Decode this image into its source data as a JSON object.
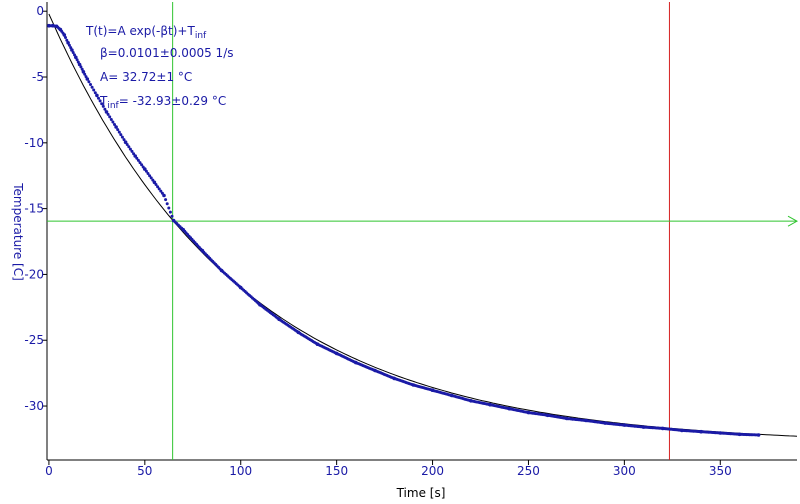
{
  "chart_data": {
    "type": "scatter",
    "xlabel": "Time [s]",
    "ylabel": "Temperature [C]",
    "xlim": [
      -1,
      390
    ],
    "ylim": [
      -34.1,
      0.7
    ],
    "x_ticks": [
      0,
      50,
      100,
      150,
      200,
      250,
      300,
      350
    ],
    "y_ticks": [
      0,
      -5,
      -10,
      -15,
      -20,
      -25,
      -30
    ],
    "fit_text": {
      "line1": "T(t)=A exp(-βt)+T",
      "line1_sub": "inf",
      "line2": "β=0.0101±0.0005 1/s",
      "line3": "A= 32.72±1 °C",
      "line4_prefix": "T",
      "line4_sub": "inf",
      "line4_rest": "= -32.93±0.29 °C"
    },
    "fit": {
      "A": 32.72,
      "beta": 0.0101,
      "T_inf": -32.93,
      "x_range": [
        0,
        390
      ],
      "color": "#000000"
    },
    "series": [
      {
        "points": [
          [
            0,
            -1.1
          ],
          [
            2,
            -1.1
          ],
          [
            4,
            -1.15
          ],
          [
            6,
            -1.4
          ],
          [
            8,
            -1.8
          ],
          [
            10,
            -2.4
          ],
          [
            12,
            -2.95
          ],
          [
            14,
            -3.5
          ],
          [
            16,
            -4.05
          ],
          [
            18,
            -4.6
          ],
          [
            20,
            -5.15
          ],
          [
            25,
            -6.4
          ],
          [
            30,
            -7.65
          ],
          [
            35,
            -8.8
          ],
          [
            40,
            -9.95
          ],
          [
            45,
            -11.0
          ],
          [
            50,
            -12.0
          ],
          [
            55,
            -13.0
          ],
          [
            60,
            -14.0
          ],
          [
            65,
            -15.9
          ],
          [
            70,
            -16.6
          ],
          [
            80,
            -18.2
          ],
          [
            90,
            -19.7
          ],
          [
            100,
            -21.0
          ],
          [
            110,
            -22.3
          ],
          [
            120,
            -23.4
          ],
          [
            130,
            -24.4
          ],
          [
            140,
            -25.3
          ],
          [
            150,
            -26.0
          ],
          [
            160,
            -26.7
          ],
          [
            170,
            -27.3
          ],
          [
            180,
            -27.9
          ],
          [
            190,
            -28.4
          ],
          [
            200,
            -28.8
          ],
          [
            210,
            -29.2
          ],
          [
            220,
            -29.6
          ],
          [
            230,
            -29.9
          ],
          [
            240,
            -30.2
          ],
          [
            250,
            -30.5
          ],
          [
            260,
            -30.7
          ],
          [
            270,
            -30.95
          ],
          [
            280,
            -31.1
          ],
          [
            290,
            -31.3
          ],
          [
            300,
            -31.45
          ],
          [
            310,
            -31.6
          ],
          [
            320,
            -31.7
          ],
          [
            330,
            -31.85
          ],
          [
            340,
            -31.95
          ],
          [
            350,
            -32.05
          ],
          [
            360,
            -32.15
          ],
          [
            370,
            -32.2
          ]
        ],
        "color": "#1a1aa6"
      }
    ],
    "cursors": {
      "vertical_green_x": 64.5,
      "horizontal_green_y": -15.95,
      "vertical_red_x": 323.5,
      "green_color": "#2fc42f",
      "red_color": "#d62020"
    },
    "grid": false,
    "axis_color": "#000000",
    "tick_label_color": "#1a1aa6",
    "xlabel_color": "#000000",
    "ylabel_color": "#1a1aa6"
  }
}
